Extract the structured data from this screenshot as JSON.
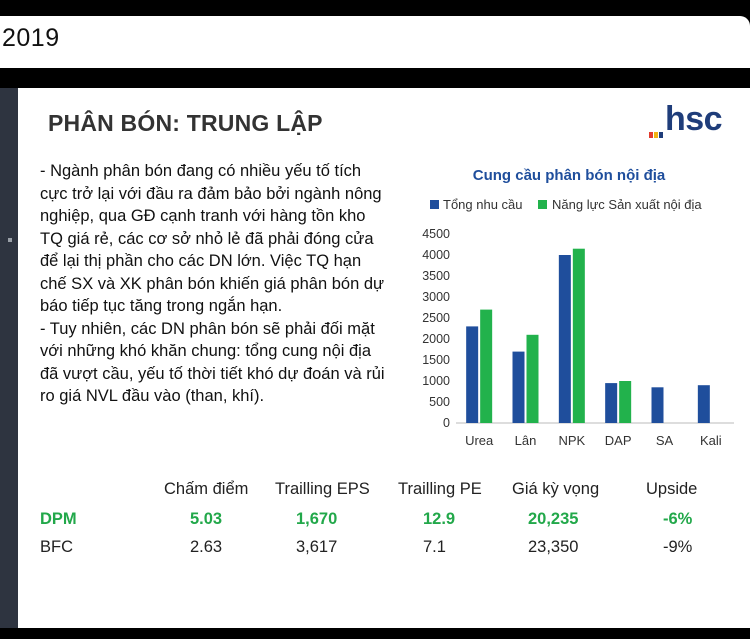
{
  "header": {
    "year": "2019"
  },
  "slide": {
    "title": "PHÂN BÓN: TRUNG LẬP",
    "logo_text": "hsc",
    "bullets": [
      "- Ngành phân bón đang có nhiều yếu tố tích cực trở lại với đầu ra đảm bảo bởi ngành nông nghiệp, qua GĐ cạnh tranh với hàng tồn kho TQ giá rẻ, các cơ sở nhỏ lẻ đã phải đóng cửa để lại thị phần cho các DN lớn. Việc TQ hạn chế SX và XK phân bón khiến giá phân bón dự báo tiếp tục tăng trong ngắn hạn.",
      "- Tuy nhiên, các DN phân bón sẽ phải đối mặt với những khó khăn chung: tổng cung nội địa đã vượt cầu, yếu tố thời tiết khó dự đoán và rủi ro giá NVL đầu vào (than, khí)."
    ],
    "table": {
      "headers": [
        "",
        "Chấm điểm",
        "Trailling EPS",
        "Trailling PE",
        "Giá kỳ vọng",
        "Upside"
      ],
      "rows": [
        {
          "ticker": "DPM",
          "score": "5.03",
          "eps": "1,670",
          "pe": "12.9",
          "target": "20,235",
          "upside": "-6%"
        },
        {
          "ticker": "BFC",
          "score": "2.63",
          "eps": "3,617",
          "pe": "7.1",
          "target": "23,350",
          "upside": "-9%"
        }
      ]
    },
    "colors": {
      "demand": "#1f4e9c",
      "capacity": "#22b24c",
      "logo_bars": [
        "#e23b2e",
        "#f2b312",
        "#1f3d7a"
      ]
    }
  },
  "chart_data": {
    "type": "bar",
    "title": "Cung cầu phân bón nội địa",
    "categories": [
      "Urea",
      "Lân",
      "NPK",
      "DAP",
      "SA",
      "Kali"
    ],
    "series": [
      {
        "name": "Tổng nhu cầu",
        "values": [
          2300,
          1700,
          4000,
          950,
          850,
          900
        ]
      },
      {
        "name": "Năng lực Sản xuất nội địa",
        "values": [
          2700,
          2100,
          4150,
          1000,
          null,
          null
        ]
      }
    ],
    "yticks": [
      "0",
      "500",
      "1000",
      "1500",
      "2000",
      "2500",
      "3000",
      "3500",
      "4000",
      "4500"
    ],
    "ylim": [
      0,
      4500
    ],
    "legend": "top"
  }
}
